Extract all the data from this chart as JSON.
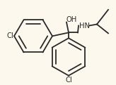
{
  "bg_color": "#fdf8ee",
  "line_color": "#2a2a2a",
  "line_width": 1.3,
  "cl1_label": "Cl",
  "cl2_label": "Cl",
  "oh_label": "OH",
  "hn_label": "HN",
  "font_size": 7.2,
  "ring_r": 0.145
}
